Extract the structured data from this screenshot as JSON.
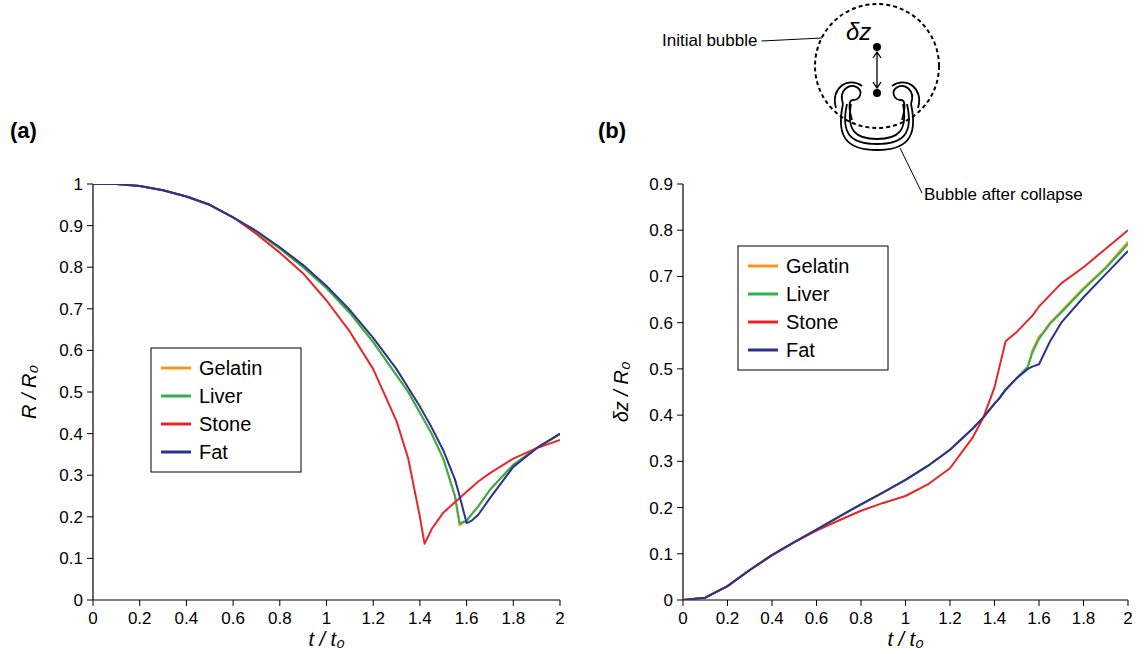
{
  "chart_data": [
    {
      "type": "line",
      "title": "(a)",
      "xlabel": "t / t₀",
      "ylabel": "R / R₀",
      "x": [
        0,
        0.1,
        0.2,
        0.3,
        0.4,
        0.5,
        0.6,
        0.7,
        0.8,
        0.9,
        1,
        1.1,
        1.2,
        1.3,
        1.35,
        1.4,
        1.42,
        1.45,
        1.5,
        1.55,
        1.57,
        1.6,
        1.62,
        1.65,
        1.7,
        1.8,
        1.9,
        2
      ],
      "series": [
        {
          "name": "Gelatin",
          "color": "#f7941d",
          "values": [
            1,
            1,
            0.995,
            0.985,
            0.97,
            0.95,
            0.92,
            0.885,
            0.845,
            0.8,
            0.75,
            0.69,
            0.62,
            0.54,
            0.5,
            0.45,
            0.43,
            0.4,
            0.34,
            0.25,
            0.18,
            0.19,
            0.205,
            0.225,
            0.265,
            0.325,
            0.365,
            0.4
          ]
        },
        {
          "name": "Liver",
          "color": "#2db34a",
          "values": [
            1,
            1,
            0.995,
            0.985,
            0.97,
            0.95,
            0.92,
            0.885,
            0.845,
            0.8,
            0.75,
            0.69,
            0.62,
            0.54,
            0.5,
            0.45,
            0.43,
            0.4,
            0.34,
            0.25,
            0.185,
            0.19,
            0.205,
            0.225,
            0.265,
            0.325,
            0.365,
            0.398
          ]
        },
        {
          "name": "Stone",
          "color": "#e8262a",
          "values": [
            1,
            1,
            0.995,
            0.985,
            0.97,
            0.95,
            0.92,
            0.88,
            0.835,
            0.785,
            0.72,
            0.645,
            0.555,
            0.43,
            0.34,
            0.2,
            0.135,
            0.17,
            0.21,
            0.235,
            0.245,
            0.26,
            0.27,
            0.285,
            0.305,
            0.34,
            0.365,
            0.385
          ]
        },
        {
          "name": "Fat",
          "color": "#2e3192",
          "values": [
            1,
            1,
            0.995,
            0.985,
            0.97,
            0.95,
            0.92,
            0.887,
            0.848,
            0.805,
            0.755,
            0.697,
            0.63,
            0.555,
            0.51,
            0.465,
            0.445,
            0.415,
            0.36,
            0.29,
            0.25,
            0.185,
            0.19,
            0.205,
            0.245,
            0.32,
            0.365,
            0.4
          ]
        }
      ],
      "xlim": [
        0,
        2
      ],
      "xticks": [
        0,
        0.2,
        0.4,
        0.6,
        0.8,
        1,
        1.2,
        1.4,
        1.6,
        1.8,
        2
      ],
      "ylim": [
        0,
        1
      ],
      "yticks": [
        0,
        0.1,
        0.2,
        0.3,
        0.4,
        0.5,
        0.6,
        0.7,
        0.8,
        0.9,
        1
      ],
      "legend": "lower left",
      "grid": false
    },
    {
      "type": "line",
      "title": "(b)",
      "xlabel": "t / t₀",
      "ylabel": "δz / R₀",
      "annotations": [
        "Initial bubble",
        "δz",
        "Bubble after collapse"
      ],
      "x": [
        0,
        0.1,
        0.2,
        0.3,
        0.4,
        0.5,
        0.6,
        0.7,
        0.8,
        0.9,
        1,
        1.1,
        1.2,
        1.3,
        1.35,
        1.4,
        1.42,
        1.45,
        1.5,
        1.55,
        1.57,
        1.6,
        1.62,
        1.65,
        1.7,
        1.8,
        1.9,
        2
      ],
      "series": [
        {
          "name": "Gelatin",
          "color": "#f7941d",
          "values": [
            0,
            0.005,
            0.03,
            0.065,
            0.097,
            0.125,
            0.152,
            0.18,
            0.207,
            0.233,
            0.26,
            0.29,
            0.325,
            0.37,
            0.395,
            0.425,
            0.435,
            0.455,
            0.48,
            0.505,
            0.54,
            0.57,
            0.58,
            0.6,
            0.625,
            0.675,
            0.72,
            0.775
          ]
        },
        {
          "name": "Liver",
          "color": "#2db34a",
          "values": [
            0,
            0.005,
            0.03,
            0.065,
            0.097,
            0.125,
            0.152,
            0.18,
            0.207,
            0.233,
            0.26,
            0.29,
            0.325,
            0.37,
            0.395,
            0.425,
            0.435,
            0.455,
            0.48,
            0.505,
            0.535,
            0.565,
            0.578,
            0.598,
            0.622,
            0.672,
            0.718,
            0.77
          ]
        },
        {
          "name": "Stone",
          "color": "#e8262a",
          "values": [
            0,
            0.005,
            0.03,
            0.065,
            0.097,
            0.125,
            0.15,
            0.172,
            0.193,
            0.21,
            0.225,
            0.25,
            0.285,
            0.35,
            0.395,
            0.46,
            0.5,
            0.56,
            0.58,
            0.605,
            0.615,
            0.635,
            0.645,
            0.66,
            0.685,
            0.72,
            0.76,
            0.8
          ]
        },
        {
          "name": "Fat",
          "color": "#2e3192",
          "values": [
            0,
            0.005,
            0.03,
            0.065,
            0.097,
            0.125,
            0.152,
            0.18,
            0.207,
            0.233,
            0.26,
            0.29,
            0.325,
            0.37,
            0.395,
            0.425,
            0.435,
            0.455,
            0.48,
            0.5,
            0.505,
            0.51,
            0.53,
            0.56,
            0.6,
            0.655,
            0.705,
            0.755
          ]
        }
      ],
      "xlim": [
        0,
        2
      ],
      "xticks": [
        0,
        0.2,
        0.4,
        0.6,
        0.8,
        1,
        1.2,
        1.4,
        1.6,
        1.8,
        2
      ],
      "ylim": [
        0,
        0.9
      ],
      "yticks": [
        0,
        0.1,
        0.2,
        0.3,
        0.4,
        0.5,
        0.6,
        0.7,
        0.8,
        0.9
      ],
      "legend": "upper left",
      "grid": false
    }
  ]
}
